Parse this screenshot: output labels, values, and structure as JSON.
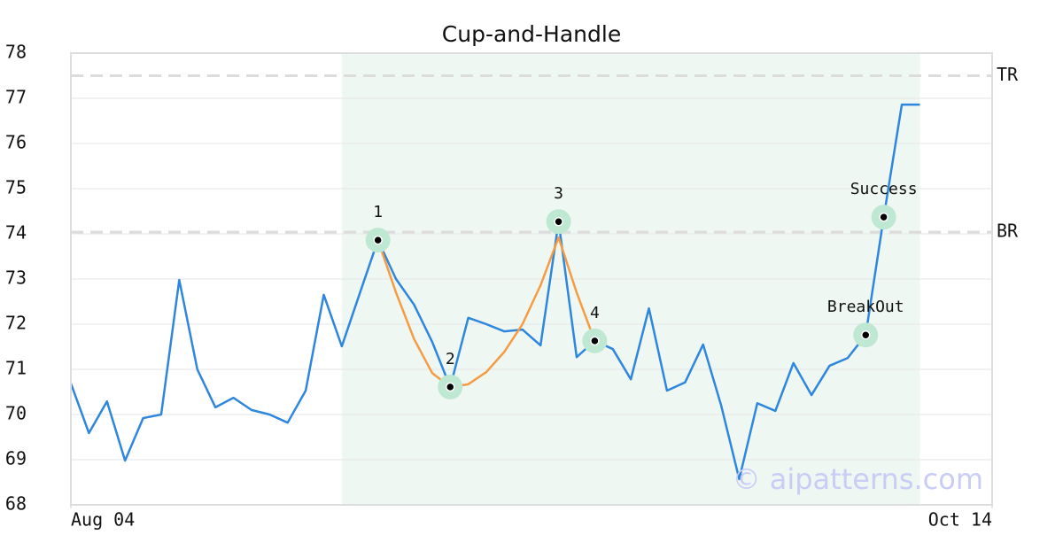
{
  "chart_data": {
    "type": "line",
    "title": "Cup-and-Handle",
    "x": [
      0,
      1,
      2,
      3,
      4,
      5,
      6,
      7,
      8,
      9,
      10,
      11,
      12,
      13,
      14,
      15,
      16,
      17,
      18,
      19,
      20,
      21,
      22,
      23,
      24,
      25,
      26,
      27,
      28,
      29,
      30,
      31,
      32,
      33,
      34,
      35,
      36,
      37,
      38,
      39,
      40,
      41,
      42,
      43,
      44,
      45,
      46,
      47
    ],
    "series": [
      {
        "color": "#2e86de",
        "values": [
          70.69,
          69.59,
          70.29,
          68.98,
          69.92,
          70.0,
          72.98,
          71.0,
          70.16,
          70.37,
          70.1,
          70.0,
          69.82,
          70.53,
          72.65,
          71.51,
          72.69,
          73.86,
          73.0,
          72.43,
          71.61,
          70.61,
          72.14,
          72.0,
          71.84,
          71.88,
          71.53,
          74.27,
          71.27,
          71.63,
          71.45,
          70.78,
          72.35,
          70.53,
          70.71,
          71.55,
          70.2,
          68.57,
          70.25,
          70.08,
          71.14,
          70.43,
          71.08,
          71.25,
          71.76,
          74.37,
          76.86,
          76.86
        ]
      },
      {
        "color": "#f59b42",
        "values": [
          null,
          null,
          null,
          null,
          null,
          null,
          null,
          null,
          null,
          null,
          null,
          null,
          null,
          null,
          null,
          null,
          null,
          73.86,
          72.7,
          71.67,
          70.92,
          70.61,
          70.67,
          70.94,
          71.39,
          72.0,
          72.86,
          73.92,
          72.7,
          71.63,
          null,
          null,
          null,
          null,
          null,
          null,
          null,
          null,
          null,
          null,
          null,
          null,
          null,
          null,
          null,
          null,
          null,
          null
        ]
      }
    ],
    "xlim": [
      0,
      51
    ],
    "xticks": [
      {
        "value": 0,
        "label": "Aug 04"
      },
      {
        "value": 51,
        "label": "Oct 14"
      }
    ],
    "ylim": [
      68,
      78
    ],
    "yticks": [
      68,
      69,
      70,
      71,
      72,
      73,
      74,
      75,
      76,
      77,
      78
    ],
    "grid": true,
    "highlight_range": [
      15,
      47
    ],
    "hlines": [
      {
        "value": 77.5,
        "label": "TR"
      },
      {
        "value": 74.04,
        "label": "BR"
      }
    ],
    "pattern_points": [
      {
        "x": 17,
        "y": 73.86,
        "label": "1"
      },
      {
        "x": 21,
        "y": 70.61,
        "label": "2"
      },
      {
        "x": 27,
        "y": 74.27,
        "label": "3"
      },
      {
        "x": 29,
        "y": 71.63,
        "label": "4"
      },
      {
        "x": 44,
        "y": 71.76,
        "label": "BreakOut"
      },
      {
        "x": 45,
        "y": 74.37,
        "label": "Success"
      }
    ],
    "watermark": "© aipatterns.com"
  }
}
